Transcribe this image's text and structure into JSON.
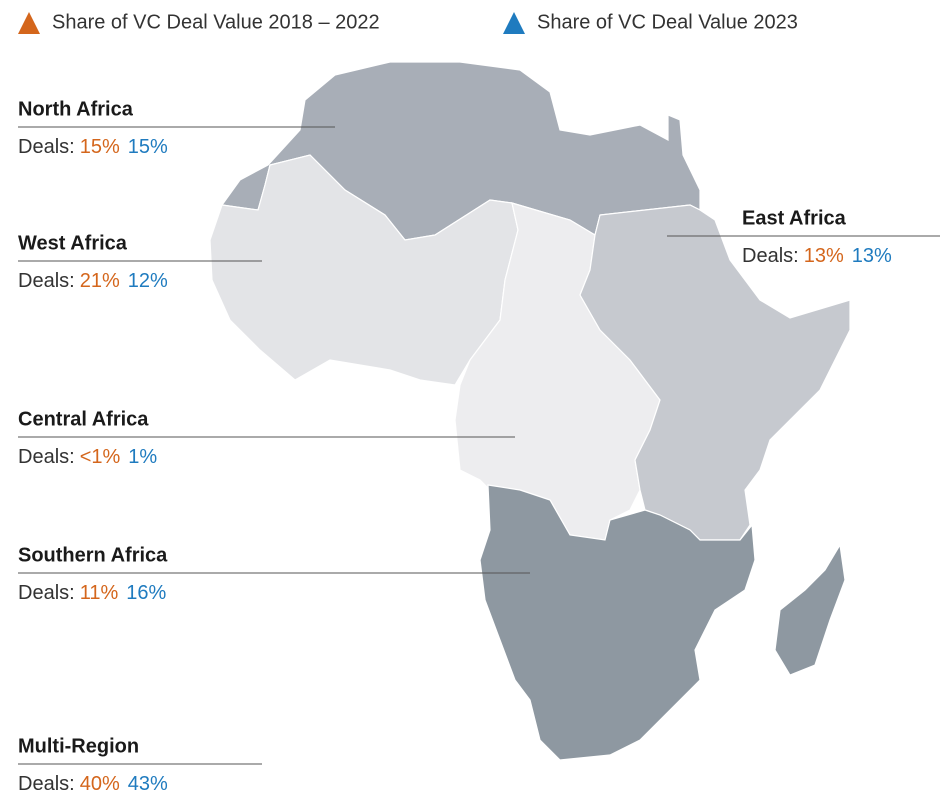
{
  "chart_data": {
    "type": "map",
    "deal_label": "Deals:",
    "categories": [
      "North Africa",
      "West Africa",
      "Central Africa",
      "East Africa",
      "Southern Africa",
      "Multi-Region"
    ],
    "series": [
      {
        "name": "Share of VC Deal Value 2018 – 2022",
        "color": "#d4661c",
        "values": [
          15,
          21,
          0.5,
          13,
          11,
          40
        ],
        "value_labels": [
          "15%",
          "21%",
          "<1%",
          "13%",
          "11%",
          "40%"
        ]
      },
      {
        "name": "Share of VC Deal Value 2023",
        "color": "#1f7bbf",
        "values": [
          15,
          12,
          1,
          13,
          16,
          43
        ],
        "value_labels": [
          "15%",
          "12%",
          "1%",
          "13%",
          "16%",
          "43%"
        ]
      }
    ]
  }
}
